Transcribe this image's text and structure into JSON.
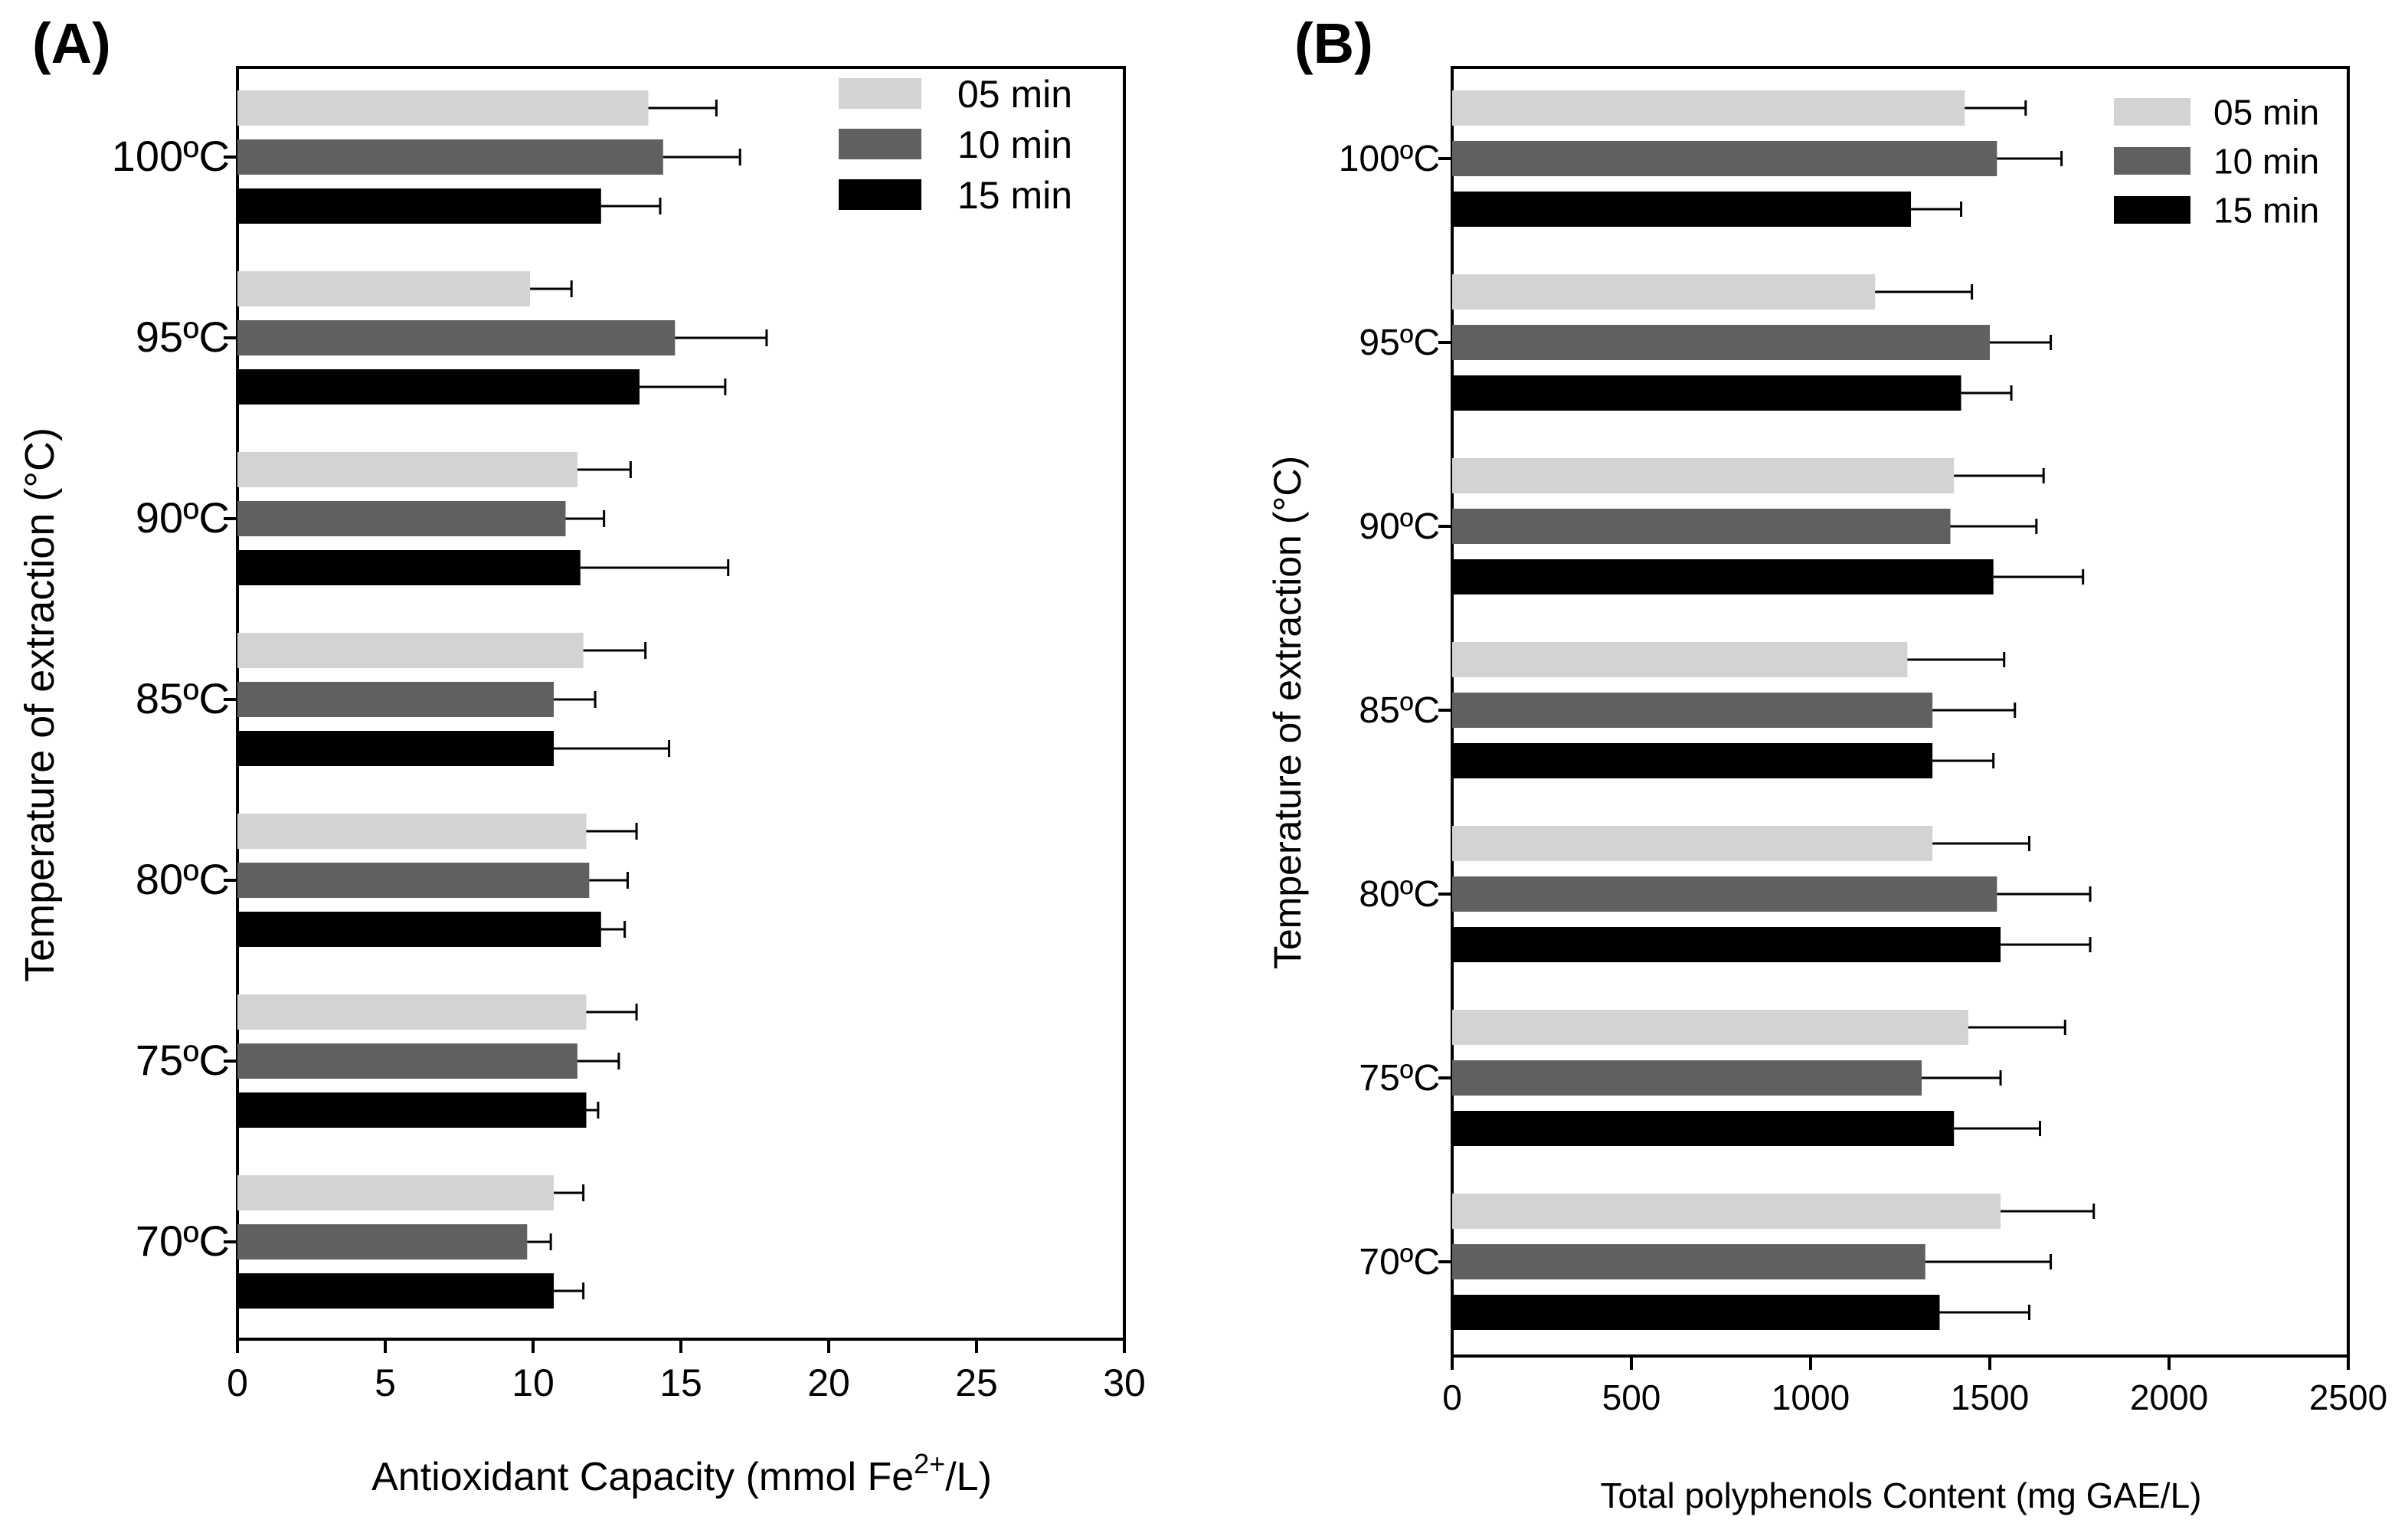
{
  "chart_data": [
    {
      "panel_label": "(A)",
      "type": "bar",
      "orientation": "horizontal",
      "categories": [
        "100ºC",
        "95ºC",
        "90ºC",
        "85ºC",
        "80ºC",
        "75ºC",
        "70ºC"
      ],
      "ylabel": "Temperature of extraction (°C)",
      "xlabel_parts": [
        "Antioxidant Capacity (mmol Fe",
        "2+",
        "/L)"
      ],
      "xlim": [
        0,
        30
      ],
      "xticks": [
        0,
        5,
        10,
        15,
        20,
        25,
        30
      ],
      "legend_position": "top-right",
      "series": [
        {
          "name": "05 min",
          "color": "#d3d3d3",
          "values": [
            13.9,
            9.9,
            11.5,
            11.7,
            11.8,
            11.8,
            10.7
          ],
          "errors": [
            2.3,
            1.4,
            1.8,
            2.1,
            1.7,
            1.7,
            1.0
          ]
        },
        {
          "name": "10 min",
          "color": "#606060",
          "values": [
            14.4,
            14.8,
            11.1,
            10.7,
            11.9,
            11.5,
            9.8
          ],
          "errors": [
            2.6,
            3.1,
            1.3,
            1.4,
            1.3,
            1.4,
            0.8
          ]
        },
        {
          "name": "15 min",
          "color": "#000000",
          "values": [
            12.3,
            13.6,
            11.6,
            10.7,
            12.3,
            11.8,
            10.7
          ],
          "errors": [
            2.0,
            2.9,
            5.0,
            3.9,
            0.8,
            0.4,
            1.0
          ]
        }
      ]
    },
    {
      "panel_label": "(B)",
      "type": "bar",
      "orientation": "horizontal",
      "categories": [
        "100ºC",
        "95ºC",
        "90ºC",
        "85ºC",
        "80ºC",
        "75ºC",
        "70ºC"
      ],
      "ylabel": "Temperature of extraction (°C)",
      "xlabel_parts": [
        "Total polyphenols Content (mg GAE/L)"
      ],
      "xlim": [
        0,
        2500
      ],
      "xticks": [
        0,
        500,
        1000,
        1500,
        2000,
        2500
      ],
      "legend_position": "top-right",
      "series": [
        {
          "name": "05 min",
          "color": "#d3d3d3",
          "values": [
            1430,
            1180,
            1400,
            1270,
            1340,
            1440,
            1530
          ],
          "errors": [
            170,
            270,
            250,
            270,
            270,
            270,
            260
          ]
        },
        {
          "name": "10 min",
          "color": "#606060",
          "values": [
            1520,
            1500,
            1390,
            1340,
            1520,
            1310,
            1320
          ],
          "errors": [
            180,
            170,
            240,
            230,
            260,
            220,
            350
          ]
        },
        {
          "name": "15 min",
          "color": "#000000",
          "values": [
            1280,
            1420,
            1510,
            1340,
            1530,
            1400,
            1360
          ],
          "errors": [
            140,
            140,
            250,
            170,
            250,
            240,
            250
          ]
        }
      ]
    }
  ]
}
